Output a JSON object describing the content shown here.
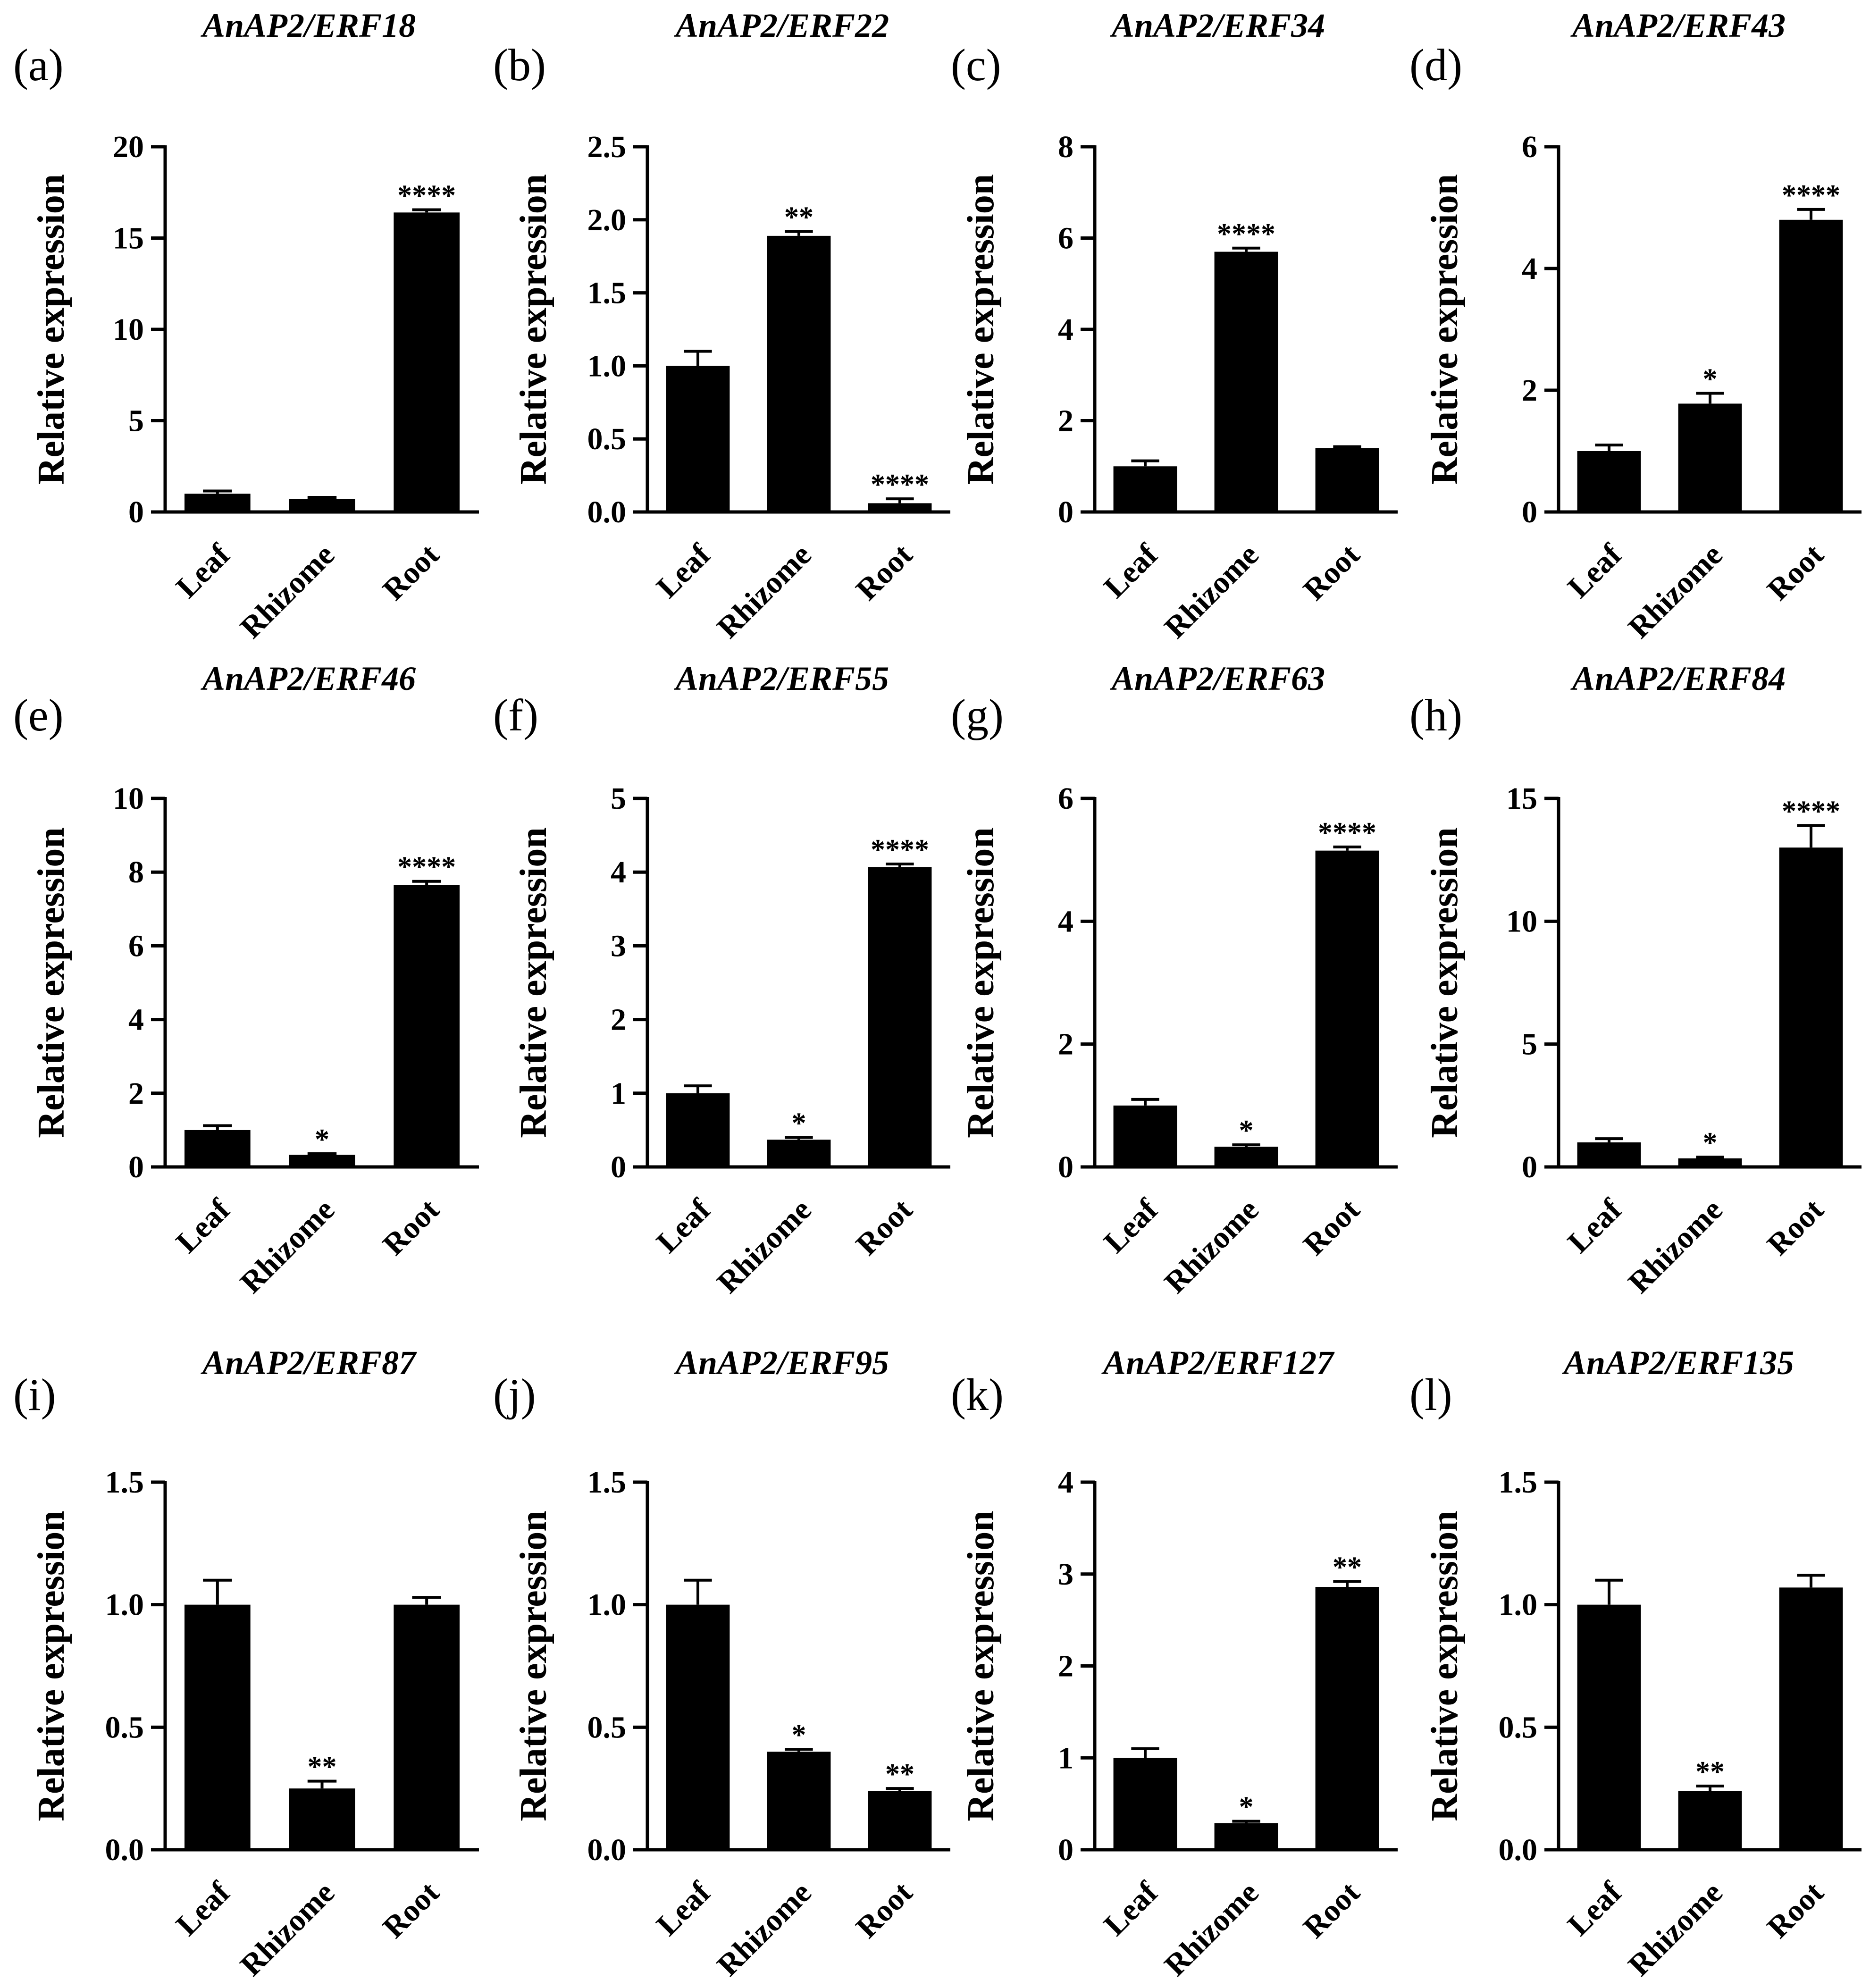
{
  "chart_data": [
    {
      "panel": "(a)",
      "title": "AnAP2/ERF18",
      "type": "bar",
      "ylabel": "Relative expression",
      "categories": [
        "Leaf",
        "Rhizome",
        "Root"
      ],
      "values": [
        1.0,
        0.7,
        16.4
      ],
      "errors": [
        0.15,
        0.1,
        0.15
      ],
      "significance": [
        "",
        "",
        "****"
      ],
      "ylim": [
        0,
        20
      ],
      "yticks": [
        0,
        5,
        10,
        15,
        20
      ],
      "ytick_labels": [
        "0",
        "5",
        "10",
        "15",
        "20"
      ]
    },
    {
      "panel": "(b)",
      "title": "AnAP2/ERF22",
      "type": "bar",
      "ylabel": "Relative expression",
      "categories": [
        "Leaf",
        "Rhizome",
        "Root"
      ],
      "values": [
        1.0,
        1.89,
        0.06
      ],
      "errors": [
        0.1,
        0.03,
        0.03
      ],
      "significance": [
        "",
        "**",
        "****"
      ],
      "ylim": [
        0,
        2.5
      ],
      "yticks": [
        0,
        0.5,
        1,
        1.5,
        2,
        2.5
      ],
      "ytick_labels": [
        "0.0",
        "0.5",
        "1.0",
        "1.5",
        "2.0",
        "2.5"
      ]
    },
    {
      "panel": "(c)",
      "title": "AnAP2/ERF34",
      "type": "bar",
      "ylabel": "Relative expression",
      "categories": [
        "Leaf",
        "Rhizome",
        "Root"
      ],
      "values": [
        1.0,
        5.7,
        1.4
      ],
      "errors": [
        0.12,
        0.08,
        0.03
      ],
      "significance": [
        "",
        "****",
        ""
      ],
      "ylim": [
        0,
        8
      ],
      "yticks": [
        0,
        2,
        4,
        6,
        8
      ],
      "ytick_labels": [
        "0",
        "2",
        "4",
        "6",
        "8"
      ]
    },
    {
      "panel": "(d)",
      "title": "AnAP2/ERF43",
      "type": "bar",
      "ylabel": "Relative expression",
      "categories": [
        "Leaf",
        "Rhizome",
        "Root"
      ],
      "values": [
        1.0,
        1.78,
        4.8
      ],
      "errors": [
        0.1,
        0.17,
        0.17
      ],
      "significance": [
        "",
        "*",
        "****"
      ],
      "ylim": [
        0,
        6
      ],
      "yticks": [
        0,
        2,
        4,
        6
      ],
      "ytick_labels": [
        "0",
        "2",
        "4",
        "6"
      ]
    },
    {
      "panel": "(e)",
      "title": "AnAP2/ERF46",
      "type": "bar",
      "ylabel": "Relative expression",
      "categories": [
        "Leaf",
        "Rhizome",
        "Root"
      ],
      "values": [
        1.0,
        0.33,
        7.65
      ],
      "errors": [
        0.12,
        0.03,
        0.1
      ],
      "significance": [
        "",
        "*",
        "****"
      ],
      "ylim": [
        0,
        10
      ],
      "yticks": [
        0,
        2,
        4,
        6,
        8,
        10
      ],
      "ytick_labels": [
        "0",
        "2",
        "4",
        "6",
        "8",
        "10"
      ]
    },
    {
      "panel": "(f)",
      "title": "AnAP2/ERF55",
      "type": "bar",
      "ylabel": "Relative expression",
      "categories": [
        "Leaf",
        "Rhizome",
        "Root"
      ],
      "values": [
        1.0,
        0.37,
        4.07
      ],
      "errors": [
        0.1,
        0.03,
        0.04
      ],
      "significance": [
        "",
        "*",
        "****"
      ],
      "ylim": [
        0,
        5
      ],
      "yticks": [
        0,
        1,
        2,
        3,
        4,
        5
      ],
      "ytick_labels": [
        "0",
        "1",
        "2",
        "3",
        "4",
        "5"
      ]
    },
    {
      "panel": "(g)",
      "title": "AnAP2/ERF63",
      "type": "bar",
      "ylabel": "Relative expression",
      "categories": [
        "Leaf",
        "Rhizome",
        "Root"
      ],
      "values": [
        1.0,
        0.33,
        5.15
      ],
      "errors": [
        0.1,
        0.03,
        0.06
      ],
      "significance": [
        "",
        "*",
        "****"
      ],
      "ylim": [
        0,
        6
      ],
      "yticks": [
        0,
        2,
        4,
        6
      ],
      "ytick_labels": [
        "0",
        "2",
        "4",
        "6"
      ]
    },
    {
      "panel": "(h)",
      "title": "AnAP2/ERF84",
      "type": "bar",
      "ylabel": "Relative expression",
      "categories": [
        "Leaf",
        "Rhizome",
        "Root"
      ],
      "values": [
        1.0,
        0.35,
        13.0
      ],
      "errors": [
        0.15,
        0.05,
        0.9
      ],
      "significance": [
        "",
        "*",
        "****"
      ],
      "ylim": [
        0,
        15
      ],
      "yticks": [
        0,
        5,
        10,
        15
      ],
      "ytick_labels": [
        "0",
        "5",
        "10",
        "15"
      ]
    },
    {
      "panel": "(i)",
      "title": "AnAP2/ERF87",
      "type": "bar",
      "ylabel": "Relative expression",
      "categories": [
        "Leaf",
        "Rhizome",
        "Root"
      ],
      "values": [
        1.0,
        0.25,
        1.0
      ],
      "errors": [
        0.1,
        0.03,
        0.03
      ],
      "significance": [
        "",
        "**",
        ""
      ],
      "ylim": [
        0,
        1.5
      ],
      "yticks": [
        0,
        0.5,
        1,
        1.5
      ],
      "ytick_labels": [
        "0.0",
        "0.5",
        "1.0",
        "1.5"
      ]
    },
    {
      "panel": "(j)",
      "title": "AnAP2/ERF95",
      "type": "bar",
      "ylabel": "Relative expression",
      "categories": [
        "Leaf",
        "Rhizome",
        "Root"
      ],
      "values": [
        1.0,
        0.4,
        0.24
      ],
      "errors": [
        0.1,
        0.01,
        0.01
      ],
      "significance": [
        "",
        "*",
        "**"
      ],
      "ylim": [
        0,
        1.5
      ],
      "yticks": [
        0,
        0.5,
        1,
        1.5
      ],
      "ytick_labels": [
        "0.0",
        "0.5",
        "1.0",
        "1.5"
      ]
    },
    {
      "panel": "(k)",
      "title": "AnAP2/ERF127",
      "type": "bar",
      "ylabel": "Relative expression",
      "categories": [
        "Leaf",
        "Rhizome",
        "Root"
      ],
      "values": [
        1.0,
        0.29,
        2.86
      ],
      "errors": [
        0.1,
        0.02,
        0.06
      ],
      "significance": [
        "",
        "*",
        "**"
      ],
      "ylim": [
        0,
        4
      ],
      "yticks": [
        0,
        1,
        2,
        3,
        4
      ],
      "ytick_labels": [
        "0",
        "1",
        "2",
        "3",
        "4"
      ]
    },
    {
      "panel": "(l)",
      "title": "AnAP2/ERF135",
      "type": "bar",
      "ylabel": "Relative expression",
      "categories": [
        "Leaf",
        "Rhizome",
        "Root"
      ],
      "values": [
        1.0,
        0.24,
        1.07
      ],
      "errors": [
        0.1,
        0.02,
        0.05
      ],
      "significance": [
        "",
        "**",
        ""
      ],
      "ylim": [
        0,
        1.5
      ],
      "yticks": [
        0,
        0.5,
        1,
        1.5
      ],
      "ytick_labels": [
        "0.0",
        "0.5",
        "1.0",
        "1.5"
      ]
    }
  ]
}
